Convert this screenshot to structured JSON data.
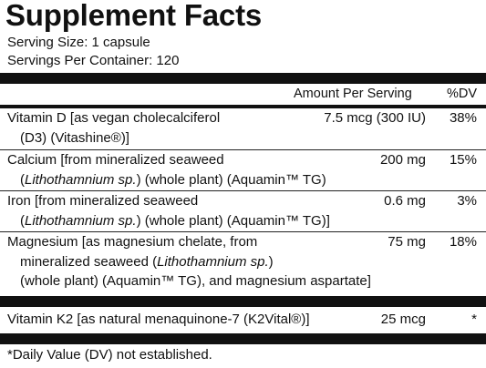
{
  "title": "Supplement Facts",
  "serving_size": "Serving Size: 1 capsule",
  "servings_per_container": "Servings Per Container: 120",
  "columns": {
    "amount": "Amount Per Serving",
    "dv": "%DV"
  },
  "rows": [
    {
      "lines": [
        "Vitamin D [as vegan cholecalciferol",
        "(D3) (Vitashine®)]"
      ],
      "amount": "7.5 mcg (300 IU)",
      "dv": "38%"
    },
    {
      "lines": [
        "Calcium [from mineralized seaweed",
        "(Lithothamnium sp.) (whole plant) (Aquamin™ TG)"
      ],
      "amount": "200 mg",
      "dv": "15%"
    },
    {
      "lines": [
        "Iron [from mineralized seaweed",
        "(Lithothamnium sp.) (whole plant) (Aquamin™ TG)]"
      ],
      "amount": "0.6 mg",
      "dv": "3%"
    },
    {
      "lines": [
        "Magnesium [as magnesium chelate, from",
        "mineralized seaweed (Lithothamnium sp.)",
        "(whole plant) (Aquamin™ TG), and magnesium aspartate]"
      ],
      "amount": "75 mg",
      "dv": "18%"
    },
    {
      "lines": [
        "Vitamin K2 [as natural menaquinone-7 (K2Vital®)]"
      ],
      "amount": "25 mcg",
      "dv": "*"
    }
  ],
  "footnote": "*Daily Value (DV) not established."
}
